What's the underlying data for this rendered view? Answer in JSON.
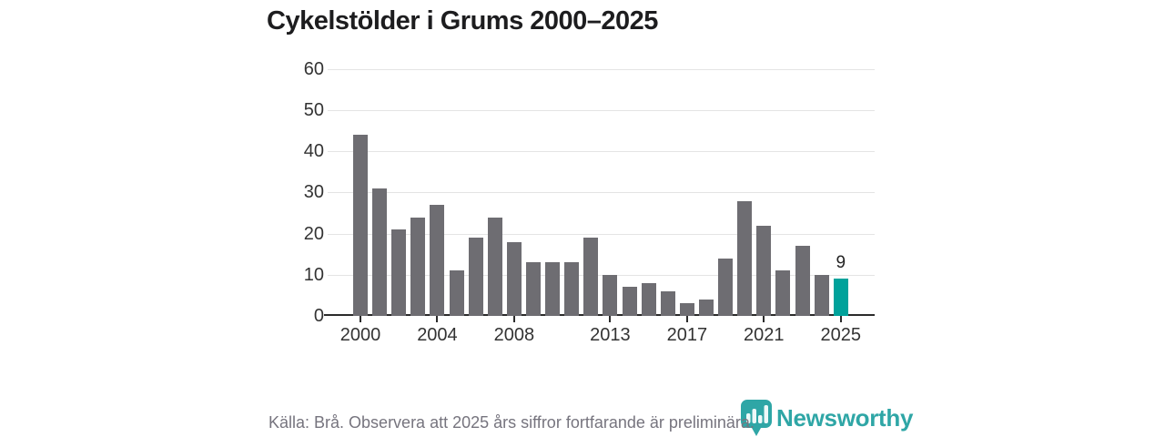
{
  "title": "Cykelstölder i Grums 2000–2025",
  "chart_data": {
    "type": "bar",
    "x": [
      2000,
      2001,
      2002,
      2003,
      2004,
      2005,
      2006,
      2007,
      2008,
      2009,
      2010,
      2011,
      2012,
      2013,
      2014,
      2015,
      2016,
      2017,
      2018,
      2019,
      2020,
      2021,
      2022,
      2023,
      2024,
      2025
    ],
    "values": [
      44,
      31,
      21,
      24,
      27,
      11,
      19,
      24,
      18,
      13,
      13,
      13,
      19,
      10,
      7,
      8,
      6,
      3,
      4,
      14,
      28,
      22,
      11,
      17,
      10,
      9
    ],
    "title": "Cykelstölder i Grums 2000–2025",
    "xlabel": "",
    "ylabel": "",
    "ylim": [
      0,
      60
    ],
    "y_ticks": [
      0,
      10,
      20,
      30,
      40,
      50,
      60
    ],
    "x_tick_labels": [
      "2000",
      "2004",
      "2008",
      "2013",
      "2017",
      "2021",
      "2025"
    ],
    "grid": true,
    "legend": "none",
    "bar_color": "#6e6d72",
    "highlight_color": "#00a29b",
    "highlight_year": 2025,
    "annotation": {
      "year": 2025,
      "text": "9"
    }
  },
  "footer": {
    "source_note": "Källa: Brå. Observera att 2025 års siffror fortfarande är preliminära."
  },
  "logo": {
    "text": "Newsworthy",
    "color": "#2fa6a6",
    "icon": "newsworthy-bubble-bar-chart-icon"
  }
}
